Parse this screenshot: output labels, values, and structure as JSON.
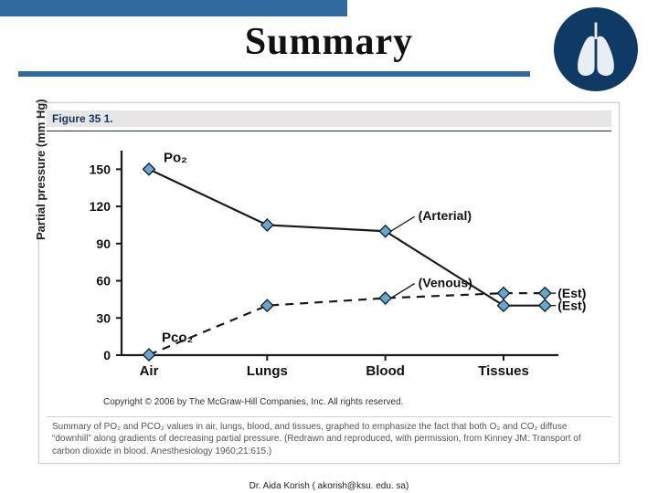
{
  "title": "Summary",
  "accent_color": "#2f6aa0",
  "lungs_icon": {
    "fill": "#e9eef3",
    "bg": "#0f3a66"
  },
  "figure": {
    "label": "Figure 35  1.",
    "type": "line",
    "ylabel": "Partial pressure\n(mm Hg)",
    "label_fontsize": 13,
    "categories": [
      "Air",
      "Lungs",
      "Blood",
      "Tissues"
    ],
    "ylim": [
      0,
      165
    ],
    "yticks": [
      0,
      30,
      60,
      90,
      120,
      150
    ],
    "background_color": "#ffffff",
    "axis_color": "#1a1a1a",
    "po2": {
      "label": "Po₂",
      "color": "#1a1a1a",
      "marker_fill": "#5fa9d6",
      "marker_stroke": "#1a1a1a",
      "style": "solid",
      "values": [
        150,
        105,
        100,
        40
      ],
      "est_tail": {
        "label": "(Est)",
        "x_extra": 4.35,
        "y": 40
      },
      "blood_tag": "(Arterial)"
    },
    "pco2": {
      "label": "Pco₂",
      "color": "#1a1a1a",
      "marker_fill": "#5fa9d6",
      "marker_stroke": "#1a1a1a",
      "style": "dashed",
      "values": [
        0.3,
        40,
        46,
        50
      ],
      "est_tail": {
        "label": "(Est)",
        "x_extra": 4.35,
        "y": 50
      },
      "blood_tag": "(Venous)"
    }
  },
  "copyright_text": "Copyright © 2006 by The McGraw-Hill Companies, Inc.\nAll rights reserved.",
  "caption_text": "Summary of PO₂ and PCO₂ values in air, lungs, blood, and tissues, graphed to emphasize the fact that both O₂ and CO₂ diffuse “downhill” along gradients of decreasing partial pressure. (Redrawn and reproduced, with permission, from Kinney JM: Transport of carbon dioxide in blood. Anesthesiology 1960;21:615.)",
  "footer_text": "Dr. Aida Korish ( akorish@ksu. edu. sa)"
}
